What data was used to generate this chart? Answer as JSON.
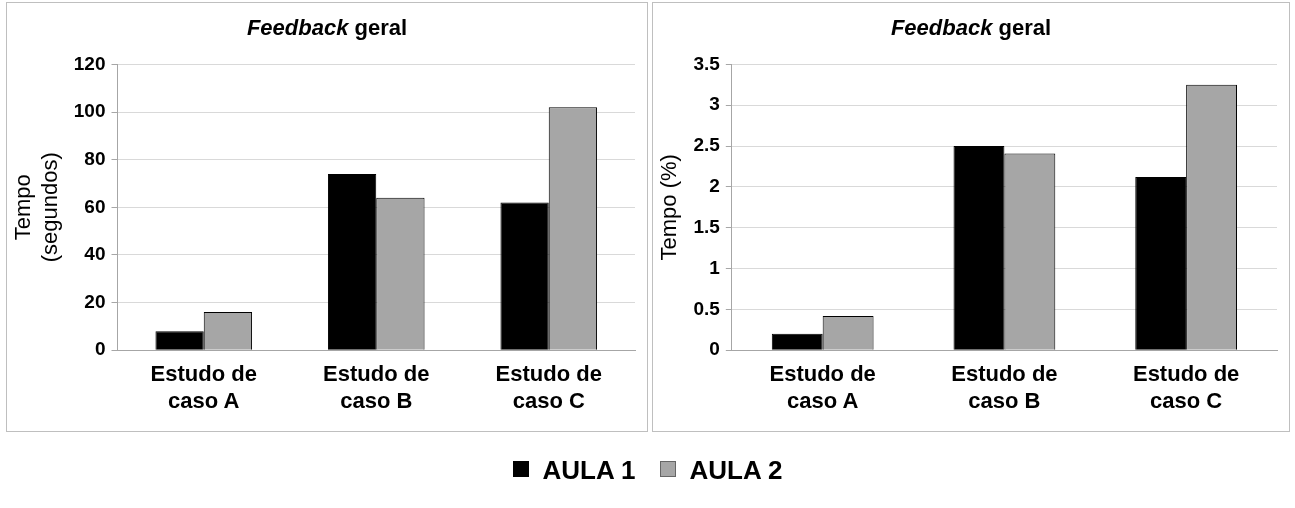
{
  "chart_data": [
    {
      "type": "bar",
      "title": "Feedback geral",
      "ylabel": "Tempo (segundos)",
      "categories": [
        "Estudo de caso A",
        "Estudo de caso B",
        "Estudo de caso C"
      ],
      "series": [
        {
          "name": "AULA 1",
          "color": "#000000",
          "values": [
            8,
            74,
            62
          ]
        },
        {
          "name": "AULA 2",
          "color": "#a6a6a6",
          "values": [
            16,
            64,
            102
          ]
        }
      ],
      "ylim": [
        0,
        120
      ],
      "yticks": [
        0,
        20,
        40,
        60,
        80,
        100,
        120
      ],
      "grid": "y",
      "legend": "bottom"
    },
    {
      "type": "bar",
      "title": "Feedback geral",
      "ylabel": "Tempo (%)",
      "categories": [
        "Estudo de caso A",
        "Estudo de caso B",
        "Estudo de caso C"
      ],
      "series": [
        {
          "color": "#000000",
          "values": [
            0.2,
            2.5,
            2.12
          ]
        },
        {
          "color": "#a6a6a6",
          "values": [
            0.42,
            2.41,
            3.25
          ]
        }
      ],
      "ylim": [
        0,
        3.5
      ],
      "yticks": [
        0,
        0.5,
        1,
        1.5,
        2,
        2.5,
        3,
        3.5
      ],
      "grid": "y"
    }
  ]
}
